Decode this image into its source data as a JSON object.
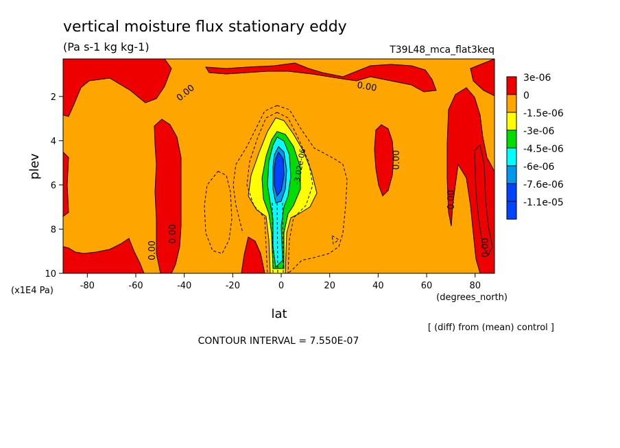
{
  "chart_data": {
    "type": "contour",
    "title": "vertical moisture flux stationary eddy",
    "units": "(Pa s-1 kg kg-1)",
    "run_label": "T39L48_mca_flat3keq",
    "xlabel": "lat",
    "x_units": "(degrees_north)",
    "ylabel": "plev",
    "y_units": "(x1E4 Pa)",
    "xlim": [
      -90,
      88
    ],
    "ylim": [
      10,
      0.3
    ],
    "x_ticks": [
      "-80",
      "-60",
      "-40",
      "-20",
      "0",
      "20",
      "40",
      "60",
      "80"
    ],
    "x_tick_values": [
      -80,
      -60,
      -40,
      -20,
      0,
      20,
      40,
      60,
      80
    ],
    "y_ticks": [
      "2",
      "4",
      "6",
      "8",
      "10"
    ],
    "y_tick_values": [
      2,
      4,
      6,
      8,
      10
    ],
    "contour_interval": "CONTOUR INTERVAL = 7.550E-07",
    "diff_note": "[ (diff) from (mean) control ]",
    "contour_labels": [
      "0.00",
      "0.00",
      "0.00",
      "0.00",
      "0.00",
      "0.00",
      "0.00",
      "-3.02e-06"
    ],
    "legend": [
      {
        "label": "3e-06",
        "color": "#ee0000"
      },
      {
        "label": "0",
        "color": "#ffa500"
      },
      {
        "label": "-1.5e-06",
        "color": "#ffff00"
      },
      {
        "label": "-3e-06",
        "color": "#00dd00"
      },
      {
        "label": "-4.5e-06",
        "color": "#00ffff"
      },
      {
        "label": "-6e-06",
        "color": "#0099ee"
      },
      {
        "label": "-7.6e-06",
        "color": "#0044ff"
      },
      {
        "label": "-1.1e-05",
        "color": "#0044ff"
      }
    ]
  }
}
